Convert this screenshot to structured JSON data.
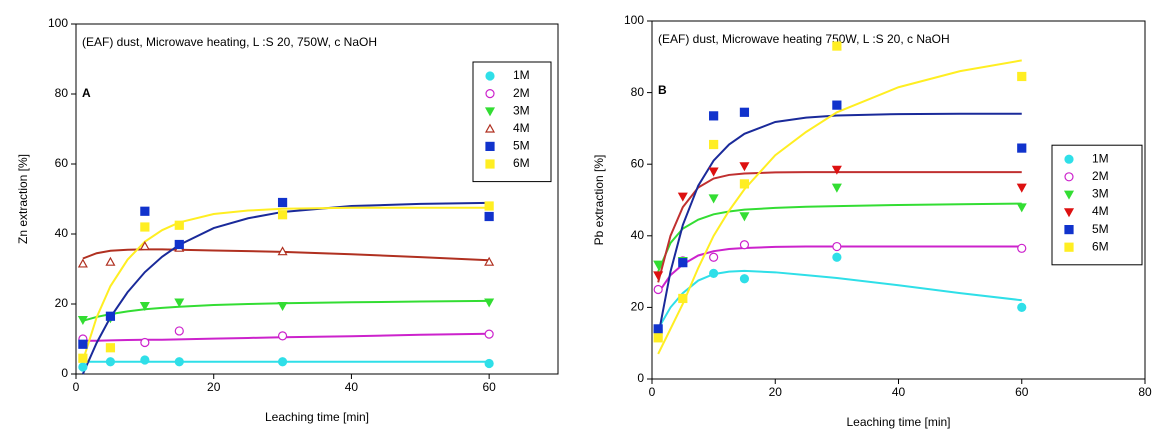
{
  "chart_data": [
    {
      "type": "scatter",
      "panel_label": "A",
      "annotation": "(EAF) dust,  Microwave heating, L :S 20, 750W, c NaOH",
      "x_label": "Leaching time [min]",
      "y_label": "Zn extraction [%]",
      "xlim": [
        0,
        70
      ],
      "xticks": [
        0,
        20,
        40,
        60
      ],
      "ylim": [
        0,
        100
      ],
      "yticks": [
        0,
        20,
        40,
        60,
        80,
        100
      ],
      "legend": "upper right",
      "x": [
        1,
        5,
        10,
        15,
        30,
        60
      ],
      "fit_x": [
        1,
        3,
        5,
        7.5,
        10,
        12.5,
        15,
        20,
        25,
        30,
        40,
        50,
        60
      ],
      "series": [
        {
          "name": "1M",
          "color": "#2fdfe8",
          "marker": "circle",
          "filled": true,
          "values": [
            2,
            3.5,
            4,
            3.5,
            3.5,
            3
          ],
          "fit": [
            3.5,
            3.5,
            3.5,
            3.5,
            3.5,
            3.5,
            3.5,
            3.5,
            3.5,
            3.5,
            3.5,
            3.5,
            3.5
          ]
        },
        {
          "name": "2M",
          "color": "#cc22cc",
          "marker": "circle",
          "filled": false,
          "values": [
            10,
            null,
            9,
            12.3,
            10.9,
            11.4
          ],
          "fit": [
            9.5,
            9.5,
            9.6,
            9.7,
            9.8,
            9.8,
            9.9,
            10.1,
            10.3,
            10.5,
            10.8,
            11.2,
            11.5
          ]
        },
        {
          "name": "3M",
          "color": "#33dd33",
          "marker": "triangle-down",
          "filled": true,
          "values": [
            15.5,
            16,
            19.5,
            20.5,
            19.5,
            20.5
          ],
          "fit": [
            15.2,
            16.3,
            17.1,
            17.9,
            18.5,
            18.9,
            19.2,
            19.7,
            20,
            20.2,
            20.5,
            20.7,
            20.9
          ]
        },
        {
          "name": "4M",
          "color": "#b03020",
          "marker": "triangle-up",
          "filled": false,
          "values": [
            31.5,
            32,
            36.5,
            36,
            35,
            32
          ],
          "fit": [
            33,
            34.5,
            35.2,
            35.5,
            35.6,
            35.6,
            35.5,
            35.3,
            35.1,
            34.9,
            34.2,
            33.4,
            32.5
          ]
        },
        {
          "name": "5M",
          "color": "#1133cc",
          "marker": "square",
          "filled": true,
          "line_color": "#1a2a9a",
          "values": [
            8.5,
            16.5,
            46.5,
            37,
            49,
            45
          ],
          "fit": [
            0,
            8.9,
            16.2,
            23.4,
            29.1,
            33.5,
            36.9,
            41.7,
            44.5,
            46.3,
            48,
            48.6,
            48.9
          ]
        },
        {
          "name": "6M",
          "color": "#ffee22",
          "marker": "square",
          "filled": true,
          "values": [
            4.5,
            7.5,
            42,
            42.5,
            45.5,
            48
          ],
          "fit": [
            3.8,
            16.2,
            25.1,
            32.7,
            37.8,
            41.1,
            43.3,
            45.7,
            46.7,
            47.2,
            47.5,
            47.5,
            47.5
          ]
        }
      ]
    },
    {
      "type": "scatter",
      "panel_label": "B",
      "annotation": "(EAF) dust, Microwave heating 750W, L :S 20,  c NaOH",
      "x_label": "Leaching time [min]",
      "y_label": "Pb extraction [%]",
      "xlim": [
        0,
        80
      ],
      "xticks": [
        0,
        20,
        40,
        60,
        80
      ],
      "ylim": [
        0,
        100
      ],
      "yticks": [
        0,
        20,
        40,
        60,
        80,
        100
      ],
      "legend": "right",
      "x": [
        1,
        5,
        10,
        15,
        30,
        60
      ],
      "fit_x": [
        1,
        3,
        5,
        7.5,
        10,
        12.5,
        15,
        20,
        25,
        30,
        40,
        50,
        60
      ],
      "series": [
        {
          "name": "1M",
          "color": "#2fdfe8",
          "marker": "circle",
          "filled": true,
          "values": [
            13.5,
            32.5,
            29.5,
            28,
            34,
            20
          ],
          "fit": [
            14,
            20,
            24,
            27.5,
            29.3,
            30,
            30.2,
            29.8,
            29,
            28.2,
            26.2,
            24,
            22
          ]
        },
        {
          "name": "2M",
          "color": "#cc22cc",
          "marker": "circle",
          "filled": false,
          "values": [
            25,
            33,
            34,
            37.5,
            37,
            36.5
          ],
          "fit": [
            24,
            29,
            32,
            34.5,
            35.7,
            36.3,
            36.6,
            36.9,
            37,
            37,
            37,
            37,
            37
          ]
        },
        {
          "name": "3M",
          "color": "#33dd33",
          "marker": "triangle-down",
          "filled": true,
          "values": [
            32,
            33,
            50.5,
            45.5,
            53.5,
            48
          ],
          "fit": [
            30,
            38,
            42,
            44.5,
            46,
            46.8,
            47.3,
            47.8,
            48.1,
            48.3,
            48.6,
            48.8,
            49
          ]
        },
        {
          "name": "4M",
          "color": "#dd1111",
          "marker": "triangle-down",
          "filled": true,
          "line_color": "#c03030",
          "values": [
            29,
            51,
            58,
            59.5,
            58.5,
            53.5
          ],
          "fit": [
            27,
            40,
            48,
            53.5,
            56,
            57,
            57.4,
            57.7,
            57.8,
            57.8,
            57.8,
            57.8,
            57.8
          ]
        },
        {
          "name": "5M",
          "color": "#1133cc",
          "marker": "square",
          "filled": true,
          "line_color": "#1a2a9a",
          "values": [
            14,
            32.5,
            73.5,
            74.5,
            76.5,
            64.5
          ],
          "fit": [
            12,
            30,
            43,
            54,
            61,
            65.5,
            68.5,
            71.8,
            73,
            73.6,
            74,
            74.1,
            74.1
          ]
        },
        {
          "name": "6M",
          "color": "#ffee22",
          "marker": "square",
          "filled": true,
          "values": [
            11.5,
            22.5,
            65.5,
            54.5,
            93,
            84.5
          ],
          "fit": [
            7,
            14,
            21,
            31,
            40,
            47,
            53,
            62.5,
            69,
            74.5,
            81.5,
            86,
            89
          ]
        }
      ]
    }
  ]
}
